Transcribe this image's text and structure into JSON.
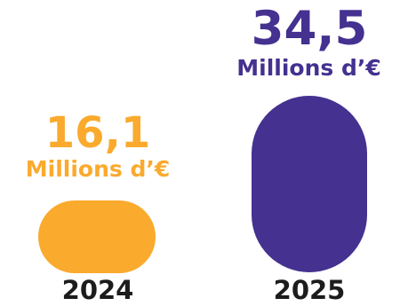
{
  "chart_data": {
    "type": "bar",
    "categories": [
      "2024",
      "2025"
    ],
    "values": [
      16.1,
      34.5
    ],
    "value_labels": [
      "16,1",
      "34,5"
    ],
    "unit_label": "Millions d’€",
    "colors": [
      "#FAAA2D",
      "#443190"
    ],
    "year_color": "#1C1C1C",
    "grid": false,
    "title": "",
    "xlabel": "",
    "ylabel": ""
  }
}
